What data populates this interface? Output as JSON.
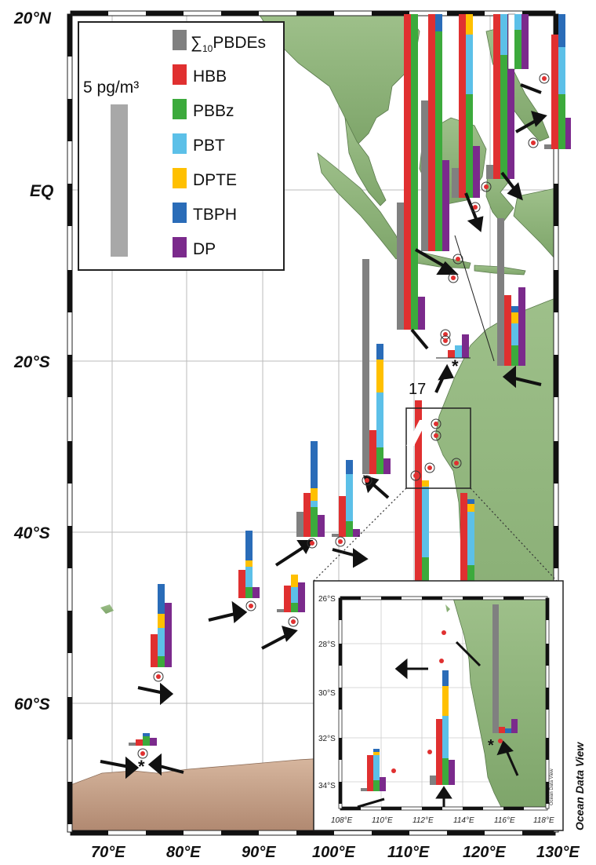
{
  "map": {
    "lat_labels": [
      "20°N",
      "EQ",
      "20°S",
      "40°S",
      "60°S"
    ],
    "lon_labels": [
      "70°E",
      "80°E",
      "90°E",
      "100°E",
      "110°E",
      "120°E",
      "130°E"
    ],
    "watermark": "Ocean Data View",
    "site_label_17": "17",
    "asterisk": "*"
  },
  "legend": {
    "scale_label": "5 pg/m³",
    "entries": [
      {
        "sigma": "∑",
        "sub": "10",
        "rest": "PBDEs",
        "color": "#808080"
      },
      {
        "label": "HBB",
        "color": "#e03030"
      },
      {
        "label": "PBBz",
        "color": "#3caa3c"
      },
      {
        "label": "PBT",
        "color": "#5cc0e8"
      },
      {
        "label": "DPTE",
        "color": "#ffc000"
      },
      {
        "label": "TBPH",
        "color": "#2a6cb8"
      },
      {
        "label": "DP",
        "color": "#7b2a8c"
      }
    ]
  },
  "inset": {
    "lat_labels": [
      "26°S",
      "28°S",
      "30°S",
      "32°S",
      "34°S"
    ],
    "lon_labels": [
      "108°E",
      "110°E",
      "112°E",
      "114°E",
      "116°E",
      "118°E"
    ],
    "watermark": "Ocean Data View"
  }
}
